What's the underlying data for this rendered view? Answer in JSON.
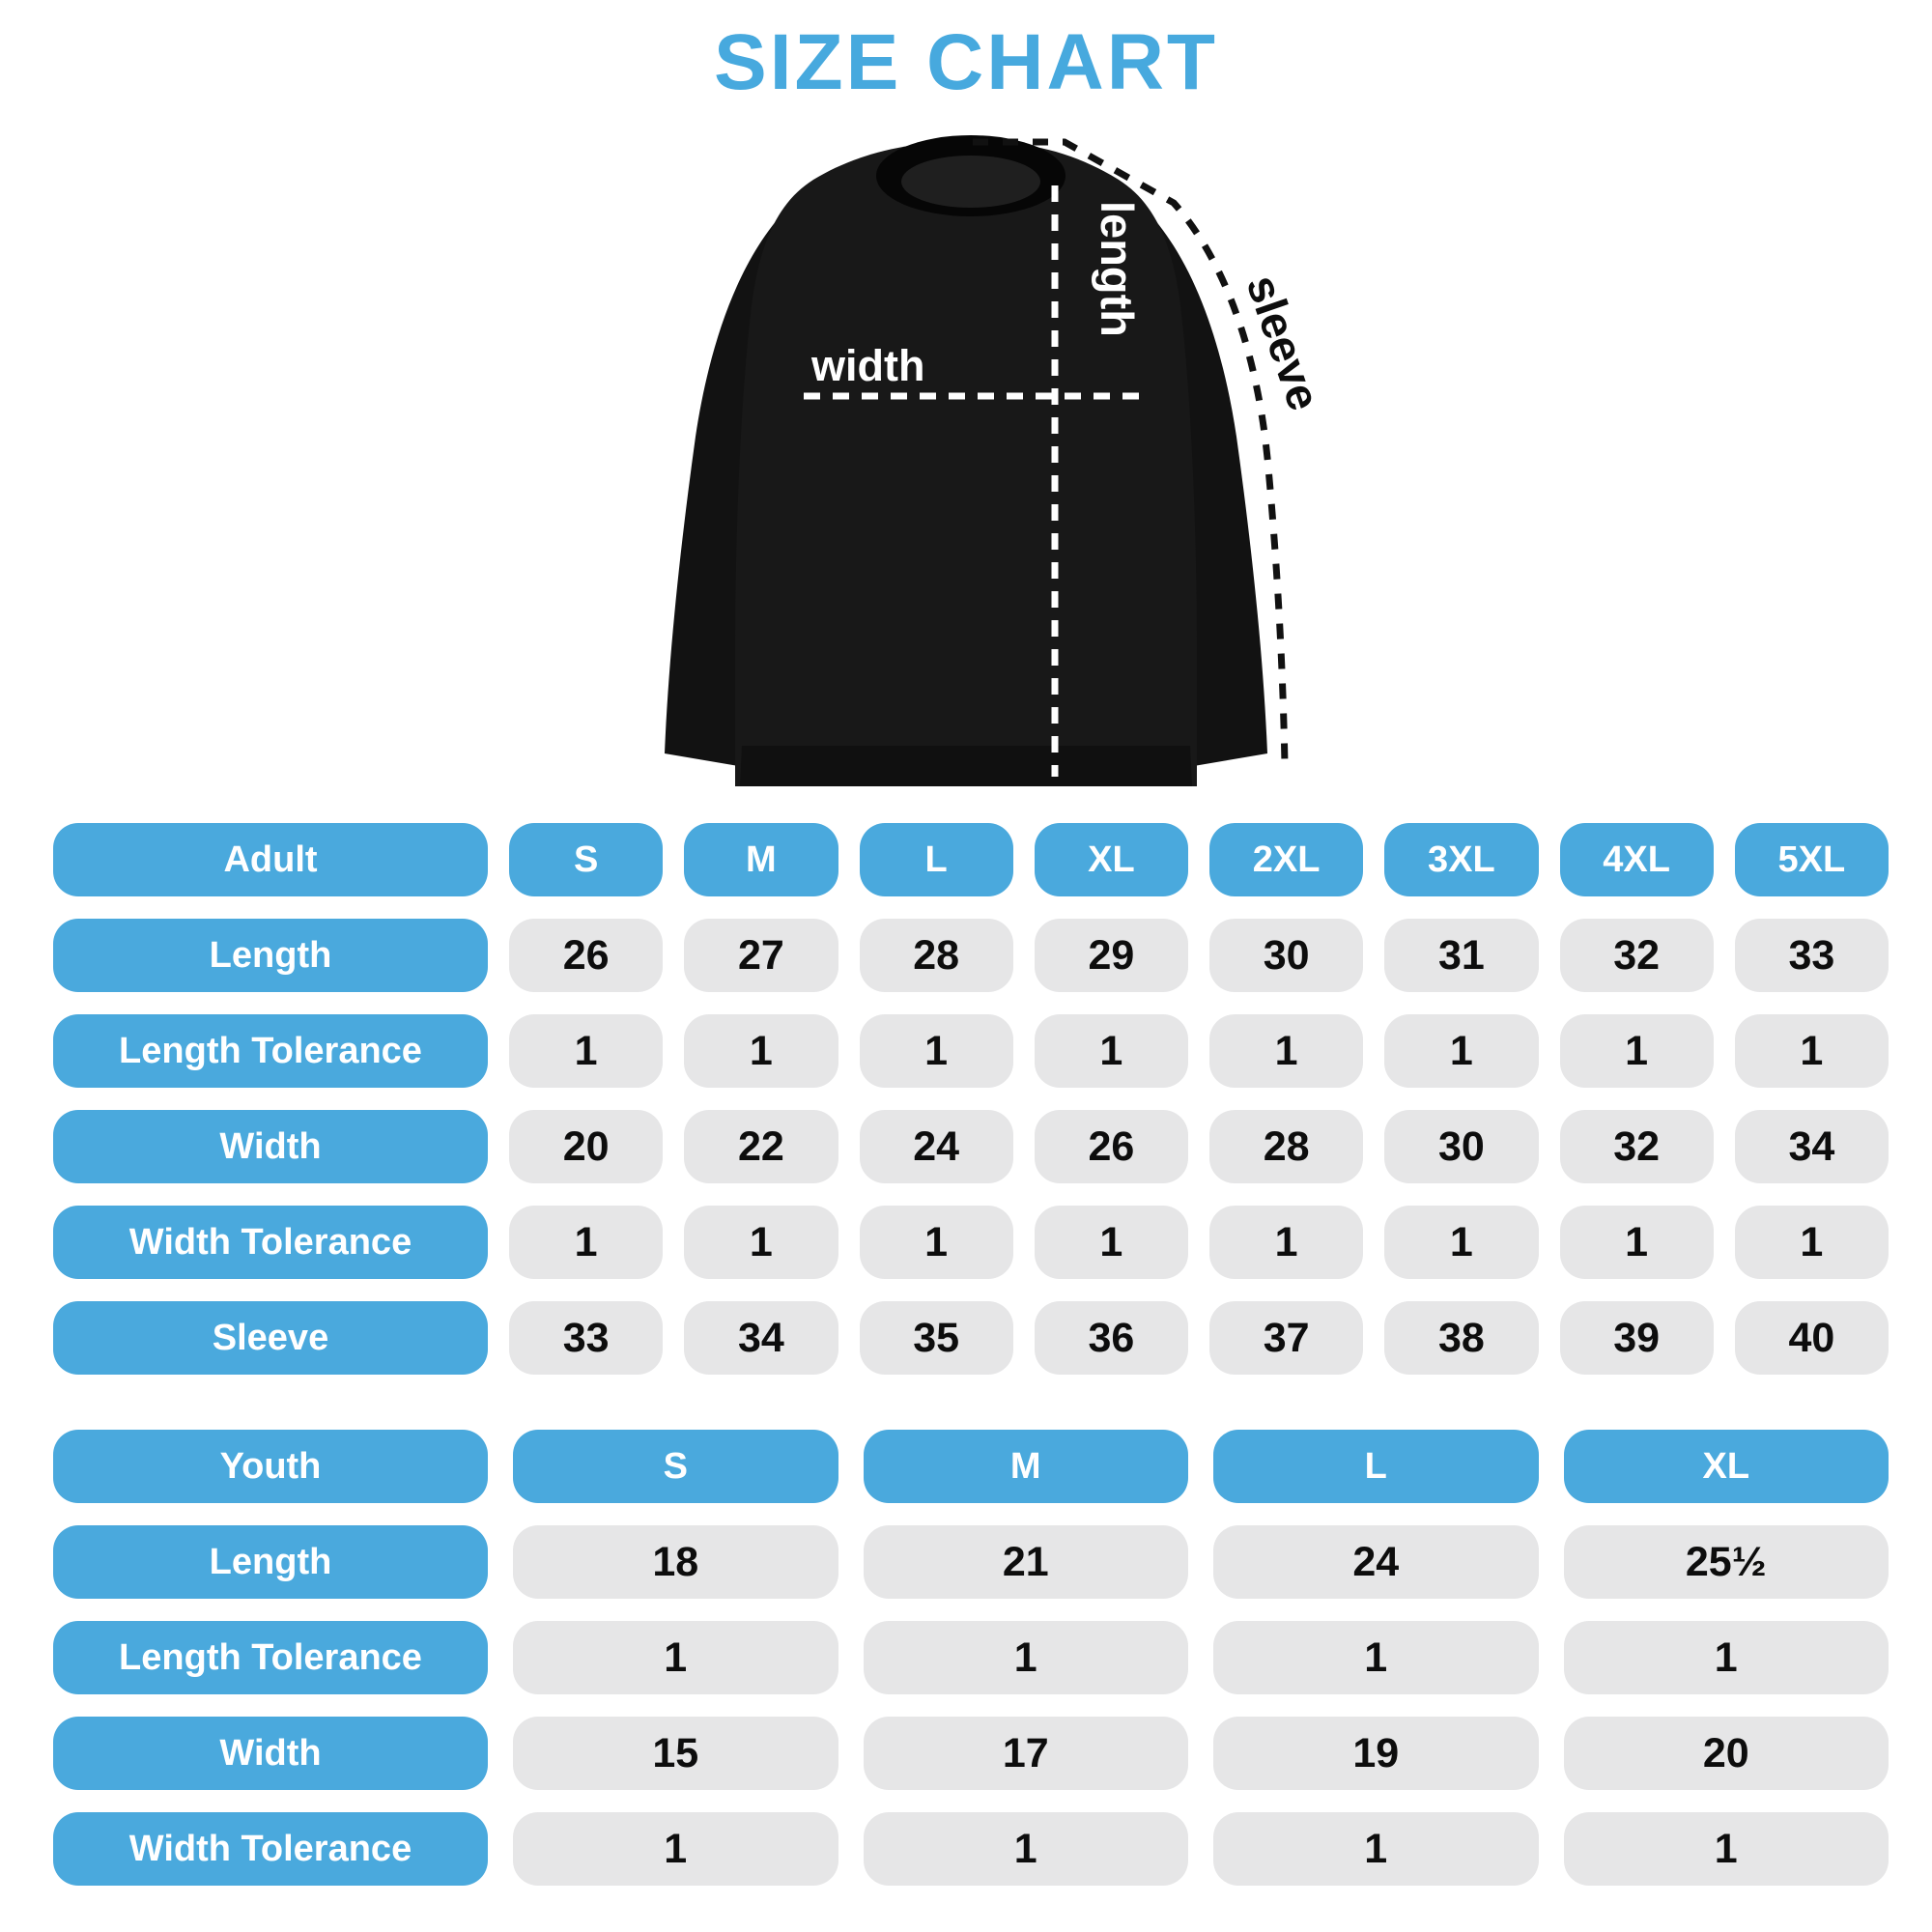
{
  "title": "SIZE CHART",
  "colors": {
    "accent_blue": "#47a9de",
    "pill_blue": "#4aa9dd",
    "cell_gray": "#e6e6e7",
    "garment_black": "#161616",
    "dash_on_garment": "#ffffff",
    "dash_outside": "#111111"
  },
  "figure": {
    "labels": {
      "length": "length",
      "width": "width",
      "sleeve": "sleeve"
    }
  },
  "adult_table": {
    "header": {
      "label": "Adult",
      "sizes": [
        "S",
        "M",
        "L",
        "XL",
        "2XL",
        "3XL",
        "4XL",
        "5XL"
      ]
    },
    "rows": [
      {
        "label": "Length",
        "values": [
          "26",
          "27",
          "28",
          "29",
          "30",
          "31",
          "32",
          "33"
        ]
      },
      {
        "label": "Length Tolerance",
        "values": [
          "1",
          "1",
          "1",
          "1",
          "1",
          "1",
          "1",
          "1"
        ]
      },
      {
        "label": "Width",
        "values": [
          "20",
          "22",
          "24",
          "26",
          "28",
          "30",
          "32",
          "34"
        ]
      },
      {
        "label": "Width Tolerance",
        "values": [
          "1",
          "1",
          "1",
          "1",
          "1",
          "1",
          "1",
          "1"
        ]
      },
      {
        "label": "Sleeve",
        "values": [
          "33",
          "34",
          "35",
          "36",
          "37",
          "38",
          "39",
          "40"
        ]
      }
    ]
  },
  "youth_table": {
    "header": {
      "label": "Youth",
      "sizes": [
        "S",
        "M",
        "L",
        "XL"
      ]
    },
    "rows": [
      {
        "label": "Length",
        "values": [
          "18",
          "21",
          "24",
          "25½"
        ]
      },
      {
        "label": "Length Tolerance",
        "values": [
          "1",
          "1",
          "1",
          "1"
        ]
      },
      {
        "label": "Width",
        "values": [
          "15",
          "17",
          "19",
          "20"
        ]
      },
      {
        "label": "Width Tolerance",
        "values": [
          "1",
          "1",
          "1",
          "1"
        ]
      }
    ]
  }
}
